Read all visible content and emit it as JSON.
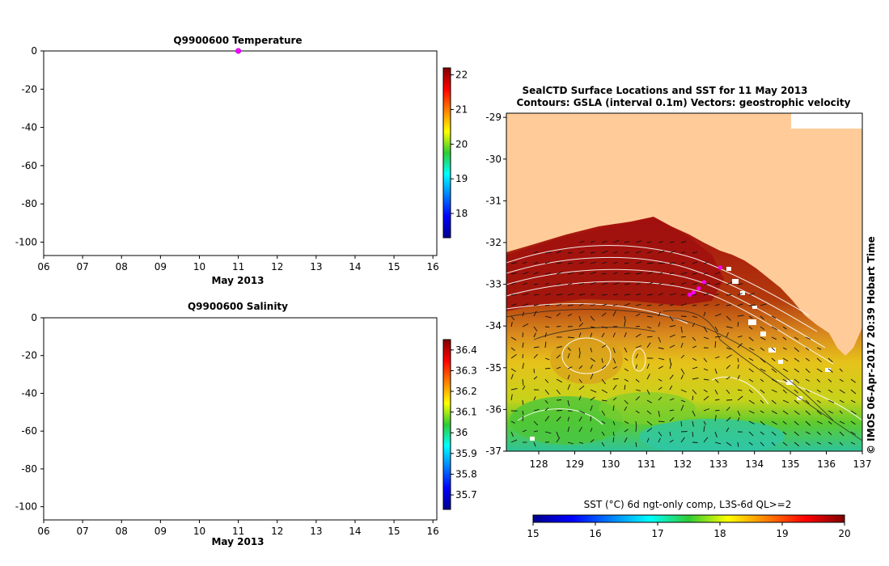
{
  "colors": {
    "land": "#FFCC99",
    "marker": "#FF00FF",
    "axis": "#000000",
    "contour": "#FFFFFF"
  },
  "chart_data": [
    {
      "id": "temperature",
      "type": "scatter",
      "title": "Q9900600  Temperature",
      "xlabel": "May 2013",
      "x_ticks": [
        "06",
        "07",
        "08",
        "09",
        "10",
        "11",
        "12",
        "13",
        "14",
        "15",
        "16"
      ],
      "xlim": [
        6,
        16.1
      ],
      "ylim": [
        -107,
        0
      ],
      "y_ticks": [
        0,
        -20,
        -40,
        -60,
        -80,
        -100
      ],
      "points": [
        {
          "x": 11.0,
          "y": 0
        }
      ],
      "colorbar": {
        "min": 17.3,
        "max": 22.2,
        "ticks": [
          "18",
          "19",
          "20",
          "21",
          "22"
        ],
        "tick_values": [
          18,
          19,
          20,
          21,
          22
        ]
      }
    },
    {
      "id": "salinity",
      "type": "scatter",
      "title": "Q9900600  Salinity",
      "xlabel": "May 2013",
      "x_ticks": [
        "06",
        "07",
        "08",
        "09",
        "10",
        "11",
        "12",
        "13",
        "14",
        "15",
        "16"
      ],
      "xlim": [
        6,
        16.1
      ],
      "ylim": [
        -107,
        0
      ],
      "y_ticks": [
        0,
        -20,
        -40,
        -60,
        -80,
        -100
      ],
      "points": [],
      "colorbar": {
        "min": 35.63,
        "max": 36.45,
        "ticks": [
          "35.7",
          "35.8",
          "35.9",
          "36",
          "36.1",
          "36.2",
          "36.3",
          "36.4"
        ],
        "tick_values": [
          35.7,
          35.8,
          35.9,
          36,
          36.1,
          36.2,
          36.3,
          36.4
        ]
      }
    },
    {
      "id": "sst_map",
      "type": "heatmap",
      "title_line1": "SealCTD Surface Locations and SST for 11 May 2013",
      "title_line2": "Contours: GSLA (interval 0.1m) Vectors: geostrophic velocity",
      "lon_ticks": [
        "128",
        "129",
        "130",
        "131",
        "132",
        "133",
        "134",
        "135",
        "136",
        "137"
      ],
      "lon_values": [
        128,
        129,
        130,
        131,
        132,
        133,
        134,
        135,
        136,
        137
      ],
      "lat_ticks": [
        "-29",
        "-30",
        "-31",
        "-32",
        "-33",
        "-34",
        "-35",
        "-36",
        "-37"
      ],
      "lat_values": [
        -29,
        -30,
        -31,
        -32,
        -33,
        -34,
        -35,
        -36,
        -37
      ],
      "xlim": [
        127.1,
        137.0
      ],
      "ylim": [
        -37.0,
        -28.9
      ],
      "seal_locations": [
        {
          "lon": 132.3,
          "lat": -33.2
        },
        {
          "lon": 132.45,
          "lat": -33.1
        },
        {
          "lon": 132.6,
          "lat": -32.95
        },
        {
          "lon": 132.2,
          "lat": -33.25
        },
        {
          "lon": 133.05,
          "lat": -32.6
        }
      ],
      "colorbar": {
        "label": "SST (°C) 6d ngt-only comp, L3S-6d QL>=2",
        "min": 15,
        "max": 20,
        "ticks": [
          "15",
          "16",
          "17",
          "18",
          "19",
          "20"
        ],
        "tick_values": [
          15,
          16,
          17,
          18,
          19,
          20
        ]
      }
    }
  ],
  "credit": "© IMOS 06-Apr-2017 20:39 Hobart Time"
}
